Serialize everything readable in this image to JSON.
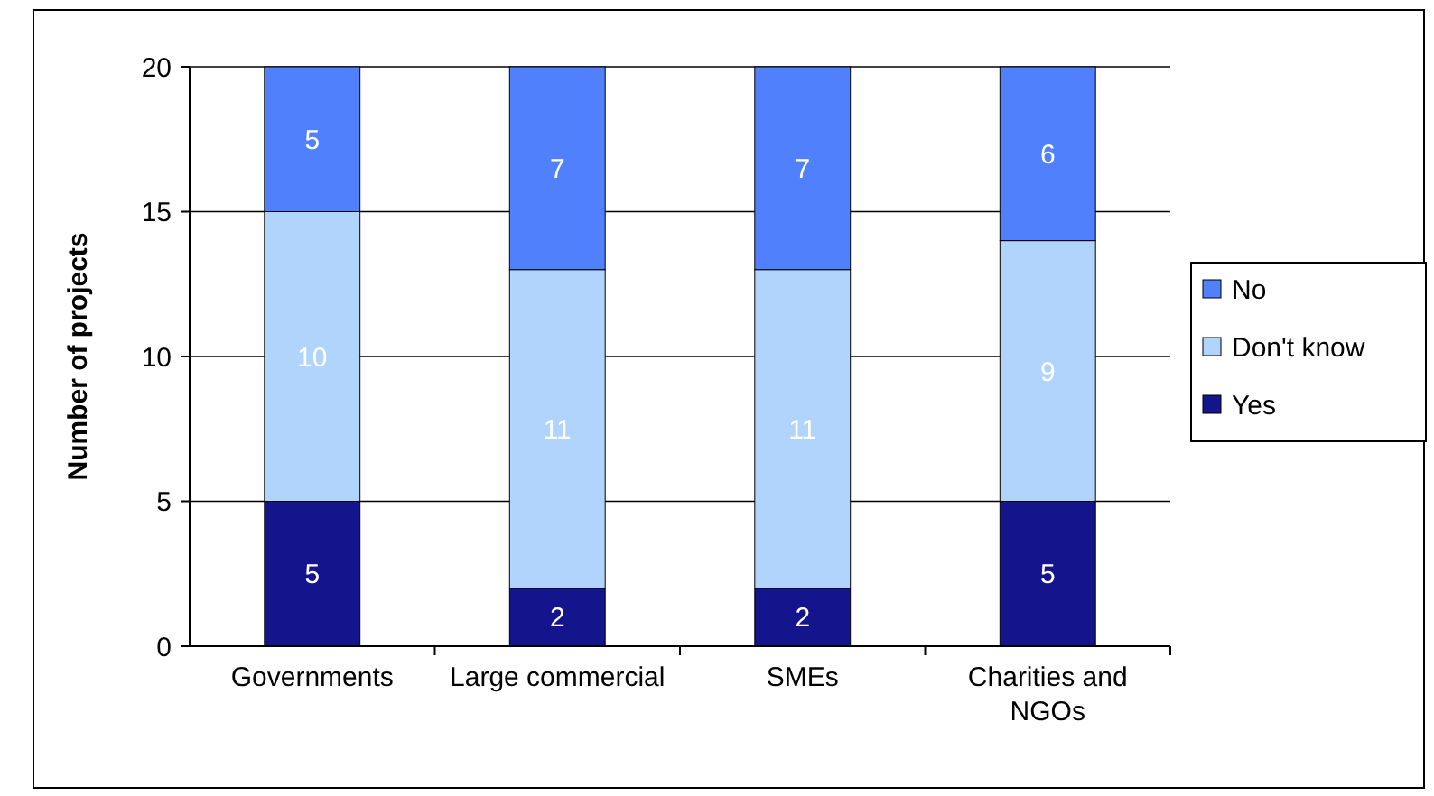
{
  "chart_data": {
    "type": "bar",
    "stacked": true,
    "categories": [
      "Governments",
      "Large commercial",
      "SMEs",
      "Charities and NGOs"
    ],
    "series": [
      {
        "name": "Yes",
        "color": "#14148c",
        "values": [
          5,
          2,
          2,
          5
        ]
      },
      {
        "name": "Don't know",
        "color": "#b0d4fc",
        "values": [
          10,
          11,
          11,
          9
        ]
      },
      {
        "name": "No",
        "color": "#5080fc",
        "values": [
          5,
          7,
          7,
          6
        ]
      }
    ],
    "ylabel": "Number of projects",
    "ylim": [
      0,
      20
    ],
    "yticks": [
      0,
      5,
      10,
      15,
      20
    ],
    "grid": "y",
    "legend": "right",
    "data_labels": true
  }
}
